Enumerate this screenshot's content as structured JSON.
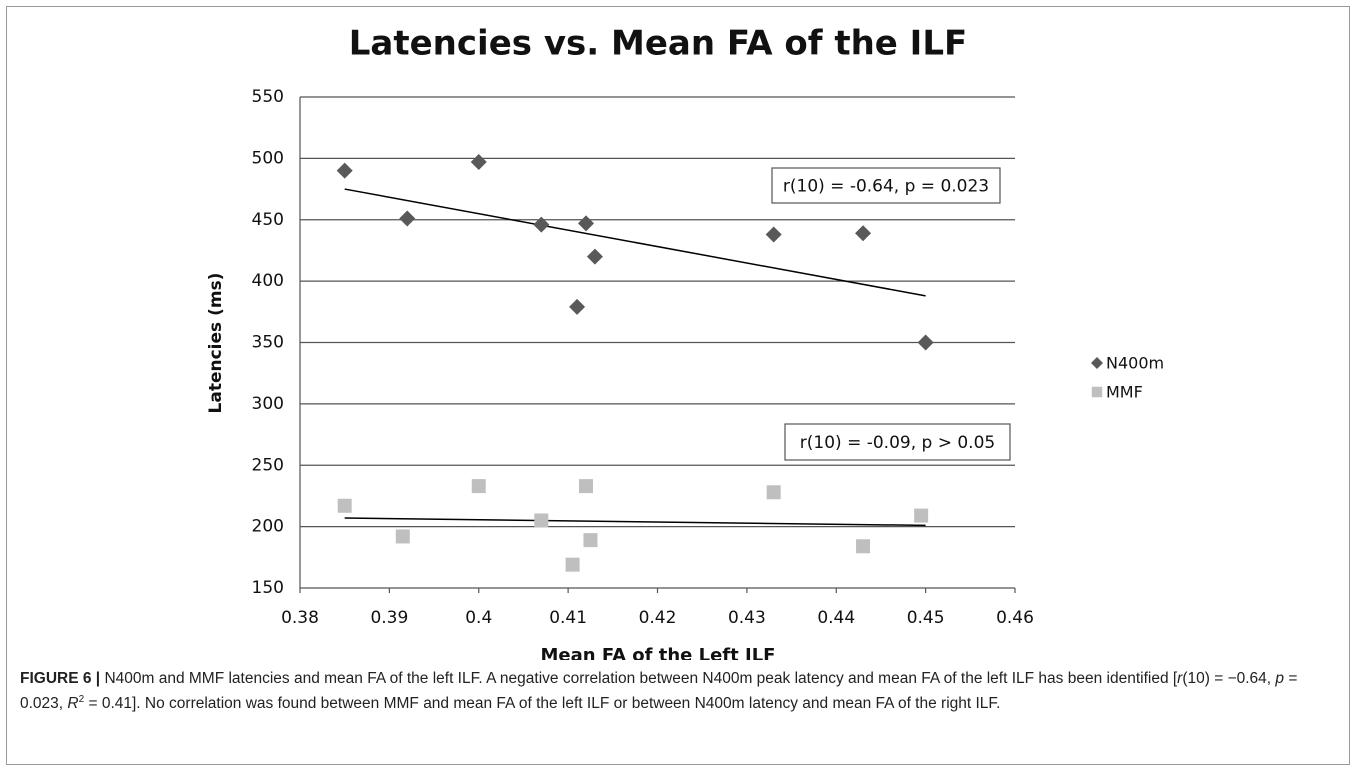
{
  "chart_data": {
    "type": "scatter",
    "title": "Latencies vs. Mean FA of the ILF",
    "xlabel": "Mean FA of the Left ILF",
    "ylabel": "Latencies (ms)",
    "xlim": [
      0.38,
      0.46
    ],
    "xticks": [
      0.38,
      0.39,
      0.4,
      0.41,
      0.42,
      0.43,
      0.44,
      0.45,
      0.46
    ],
    "ylim": [
      150,
      550
    ],
    "yticks": [
      150,
      200,
      250,
      300,
      350,
      400,
      450,
      500,
      550
    ],
    "grid": true,
    "legend": "right",
    "series": [
      {
        "name": "N400m",
        "color": "#595959",
        "marker": "diamond",
        "x": [
          0.385,
          0.392,
          0.4,
          0.407,
          0.412,
          0.413,
          0.411,
          0.433,
          0.443,
          0.45
        ],
        "values": [
          490,
          451,
          497,
          446,
          447,
          420,
          379,
          438,
          439,
          350
        ]
      },
      {
        "name": "MMF",
        "color": "#bfbfbf",
        "marker": "square",
        "x": [
          0.385,
          0.3915,
          0.4,
          0.407,
          0.412,
          0.4125,
          0.4105,
          0.433,
          0.443,
          0.4495
        ],
        "values": [
          217,
          192,
          233,
          205,
          233,
          189,
          169,
          228,
          184,
          209
        ]
      }
    ],
    "trendlines": [
      {
        "color": "#000000",
        "x": [
          0.385,
          0.45
        ],
        "values": [
          475,
          388
        ]
      },
      {
        "color": "#000000",
        "x": [
          0.385,
          0.45
        ],
        "values": [
          207,
          201
        ]
      }
    ],
    "annotations": [
      "r(10) = -0.64, p = 0.023",
      "r(10) = -0.09, p > 0.05"
    ]
  },
  "caption": {
    "label": "FIGURE 6 |",
    "text": [
      " N400m and MMF latencies and mean FA of the left ILF. A negative correlation between N400m peak latency and mean FA of the left ILF has been identified [",
      "r",
      "(10) = −0.64, ",
      "p",
      " = 0.023, ",
      "R",
      "2",
      " = 0.41]. No correlation was found between MMF and mean FA of the left ILF or between N400m latency and mean FA of the right ILF."
    ]
  }
}
